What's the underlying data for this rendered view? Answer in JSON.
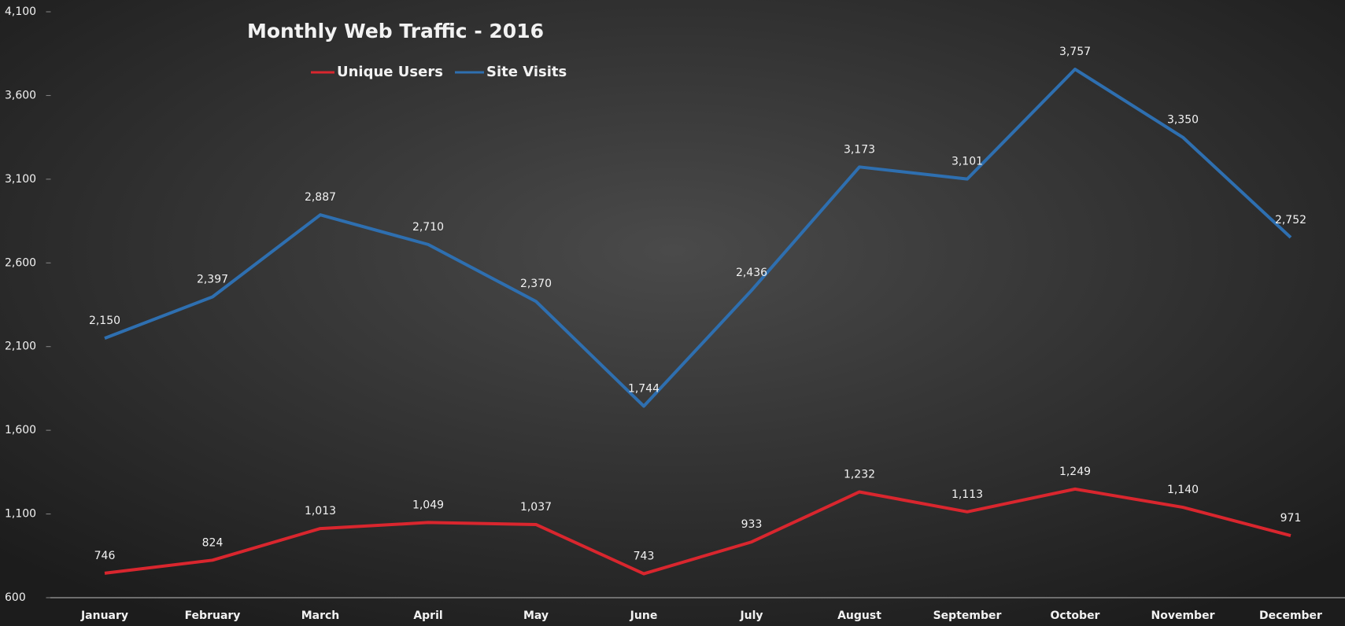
{
  "chart_data": {
    "type": "line",
    "title": "Monthly Web Traffic - 2016",
    "categories": [
      "January",
      "February",
      "March",
      "April",
      "May",
      "June",
      "July",
      "August",
      "September",
      "October",
      "November",
      "December"
    ],
    "series": [
      {
        "name": "Unique Users",
        "color": "#d9262e",
        "values": [
          746,
          824,
          1013,
          1049,
          1037,
          743,
          933,
          1232,
          1113,
          1249,
          1140,
          971
        ],
        "value_labels": [
          "746",
          "824",
          "1,013",
          "1,049",
          "1,037",
          "743",
          "933",
          "1,232",
          "1,113",
          "1,249",
          "1,140",
          "971"
        ]
      },
      {
        "name": "Site Visits",
        "color": "#2e6fb0",
        "values": [
          2150,
          2397,
          2887,
          2710,
          2370,
          1744,
          2436,
          3173,
          3101,
          3757,
          3350,
          2752
        ],
        "value_labels": [
          "2,150",
          "2,397",
          "2,887",
          "2,710",
          "2,370",
          "1,744",
          "2,436",
          "3,173",
          "3,101",
          "3,757",
          "3,350",
          "2,752"
        ]
      }
    ],
    "ylim": [
      600,
      4100
    ],
    "yticks": [
      600,
      {
        "value": 1100,
        "label": "1,100"
      },
      {
        "value": 1600,
        "label": "1,600"
      },
      {
        "value": 2100,
        "label": "2,100"
      },
      {
        "value": 2600,
        "label": "2,600"
      },
      {
        "value": 3100,
        "label": "3,100"
      },
      {
        "value": 3600,
        "label": "3,600"
      },
      {
        "value": 4100,
        "label": "4,100"
      }
    ],
    "grid": false
  }
}
